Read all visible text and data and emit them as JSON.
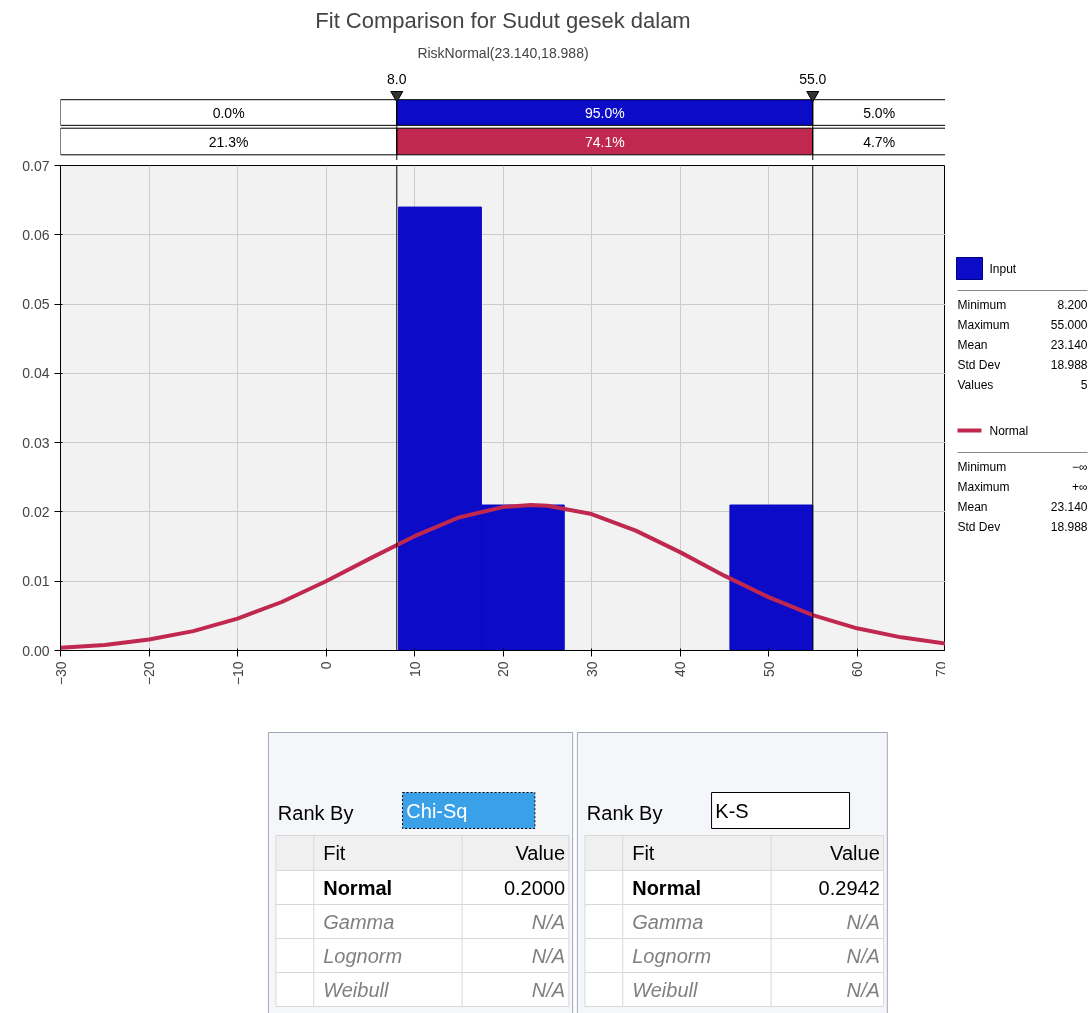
{
  "chart_data": {
    "type": "histogram",
    "title": "Fit Comparison for Sudut gesek dalam",
    "subtitle": "RiskNormal(23.140,18.988)",
    "series": [
      {
        "type": "histogram",
        "name": "Input",
        "color": "#0b0bc8",
        "bins": [
          8.2,
          17.56,
          26.92,
          36.28,
          45.64,
          55.0
        ],
        "values": [
          0.064,
          0.021,
          0,
          0,
          0.021
        ]
      },
      {
        "type": "line",
        "name": "Normal",
        "color": "#c02850",
        "x": [
          -30,
          -25,
          -20,
          -15,
          -10,
          -5,
          0,
          5,
          10,
          15,
          20,
          23.14,
          25,
          30,
          35,
          40,
          45,
          50,
          55,
          60,
          65,
          70
        ],
        "values": [
          0.0004,
          0.0008,
          0.0016,
          0.0028,
          0.0046,
          0.007,
          0.01,
          0.0133,
          0.0165,
          0.0192,
          0.0207,
          0.021,
          0.0209,
          0.0197,
          0.0173,
          0.0142,
          0.0108,
          0.0077,
          0.0051,
          0.0032,
          0.0019,
          0.001
        ]
      }
    ],
    "xlim": [
      -30,
      70
    ],
    "xticks": [
      -30,
      -20,
      -10,
      0,
      10,
      20,
      30,
      40,
      50,
      60,
      70
    ],
    "ylim": [
      0,
      0.07
    ],
    "yticks": [
      {
        "value": 0,
        "label": "0.00"
      },
      {
        "value": 0.01,
        "label": "0.01"
      },
      {
        "value": 0.02,
        "label": "0.02"
      },
      {
        "value": 0.03,
        "label": "0.03"
      },
      {
        "value": 0.04,
        "label": "0.04"
      },
      {
        "value": 0.05,
        "label": "0.05"
      },
      {
        "value": 0.06,
        "label": "0.06"
      },
      {
        "value": 0.07,
        "label": "0.07"
      }
    ],
    "grid": true,
    "legend": "right",
    "ref_lines": [
      {
        "axis": "x",
        "value": 8.0,
        "label": "8.0"
      },
      {
        "axis": "x",
        "value": 55.0,
        "label": "55.0"
      }
    ],
    "annotations": [
      "0.0%",
      "95.0%",
      "5.0%",
      "21.3%",
      "74.1%",
      "4.7%",
      "Minimum 8.200",
      "Maximum 55.000",
      "Mean 23.140",
      "Std Dev 18.988",
      "Values 5",
      "Minimum −∞",
      "Maximum +∞",
      "Mean 23.140",
      "Std Dev 18.988",
      "Rank By",
      "Chi-Sq",
      "Fit",
      "Value",
      "Normal",
      "0.2000",
      "Gamma",
      "N/A",
      "Lognorm",
      "N/A",
      "Weibull",
      "N/A",
      "Rank By",
      "K-S",
      "Fit",
      "Value",
      "Normal",
      "0.2942",
      "Gamma",
      "N/A",
      "Lognorm",
      "N/A",
      "Weibull",
      "N/A"
    ]
  }
}
